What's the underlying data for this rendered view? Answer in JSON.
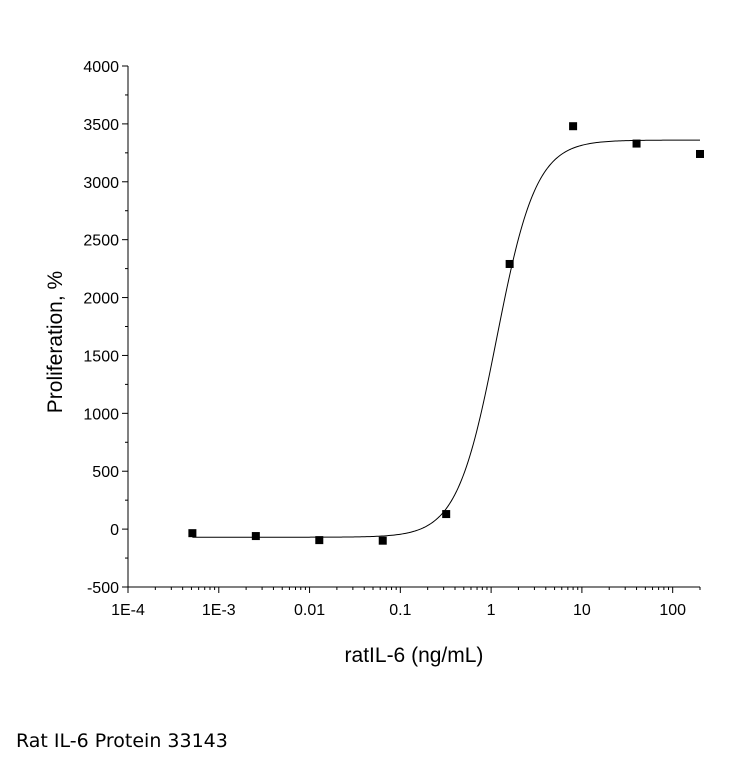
{
  "chart_data": {
    "type": "scatter",
    "title": "",
    "xlabel": "ratIL-6 (ng/mL)",
    "ylabel": "Proliferation, %",
    "x_scale": "log",
    "xlim": [
      0.0001,
      200
    ],
    "ylim": [
      -500,
      4000
    ],
    "x_ticks": [
      0.0001,
      0.001,
      0.01,
      0.1,
      1,
      10,
      100
    ],
    "x_tick_labels": [
      "1E-4",
      "1E-3",
      "0.01",
      "0.1",
      "1",
      "10",
      "100"
    ],
    "y_ticks": [
      -500,
      0,
      500,
      1000,
      1500,
      2000,
      2500,
      3000,
      3500,
      4000
    ],
    "y_tick_labels": [
      "-500",
      "0",
      "500",
      "1000",
      "1500",
      "2000",
      "2500",
      "3000",
      "3500",
      "4000"
    ],
    "grid": false,
    "legend": "none",
    "series": [
      {
        "marker": "square",
        "color": "#000000",
        "x": [
          0.000512,
          0.00256,
          0.0128,
          0.064,
          0.32,
          1.6,
          8,
          40,
          200
        ],
        "y": [
          -35,
          -60,
          -95,
          -100,
          130,
          2290,
          3480,
          3330,
          3240
        ]
      }
    ],
    "fit_curve": {
      "model": "4PL",
      "color": "#000000",
      "bottom": -70,
      "top": 3360,
      "ec50": 1.15,
      "hill": 2.0
    }
  },
  "caption": "Rat IL-6 Protein 33143"
}
